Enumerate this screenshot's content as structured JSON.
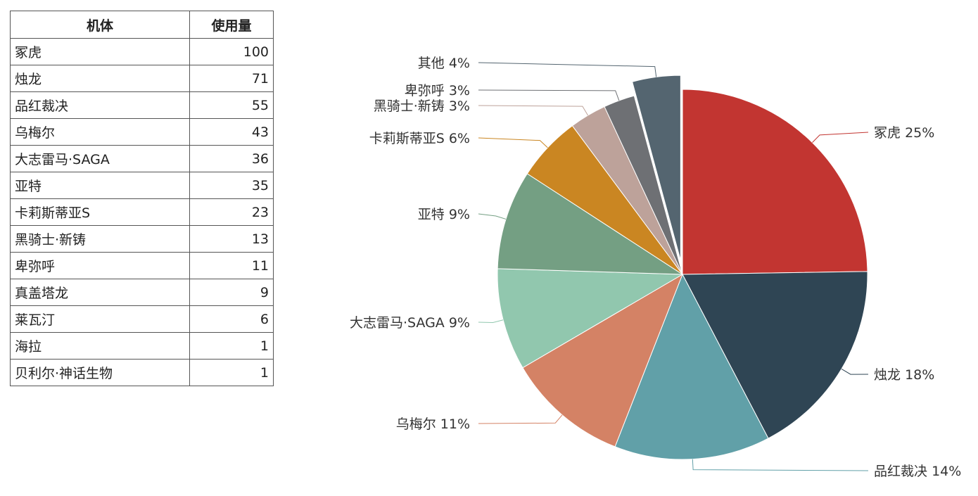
{
  "table": {
    "headers": {
      "name": "机体",
      "value": "使用量"
    },
    "rows": [
      {
        "name": "冢虎",
        "value": "100"
      },
      {
        "name": "烛龙",
        "value": "71"
      },
      {
        "name": "品红裁决",
        "value": "55"
      },
      {
        "name": "乌梅尔",
        "value": "43"
      },
      {
        "name": "大志雷马·SAGA",
        "value": "36"
      },
      {
        "name": "亚特",
        "value": "35"
      },
      {
        "name": "卡莉斯蒂亚S",
        "value": "23"
      },
      {
        "name": "黑骑士·新铸",
        "value": "13"
      },
      {
        "name": "卑弥呼",
        "value": "11"
      },
      {
        "name": "真盖塔龙",
        "value": "9"
      },
      {
        "name": "莱瓦汀",
        "value": "6"
      },
      {
        "name": "海拉",
        "value": "1"
      },
      {
        "name": "贝利尔·神话生物",
        "value": "1"
      }
    ]
  },
  "chart_data": {
    "type": "pie",
    "slices": [
      {
        "label": "冢虎",
        "value": 100,
        "percent_label": "25%",
        "color": "#c23531"
      },
      {
        "label": "烛龙",
        "value": 71,
        "percent_label": "18%",
        "color": "#2f4554"
      },
      {
        "label": "品红裁决",
        "value": 55,
        "percent_label": "14%",
        "color": "#61a0a8"
      },
      {
        "label": "乌梅尔",
        "value": 43,
        "percent_label": "11%",
        "color": "#d48265"
      },
      {
        "label": "大志雷马·SAGA",
        "value": 36,
        "percent_label": "9%",
        "color": "#91c7ae"
      },
      {
        "label": "亚特",
        "value": 35,
        "percent_label": "9%",
        "color": "#749f83"
      },
      {
        "label": "卡莉斯蒂亚S",
        "value": 23,
        "percent_label": "6%",
        "color": "#ca8622"
      },
      {
        "label": "黑骑士·新铸",
        "value": 13,
        "percent_label": "3%",
        "color": "#bda29a"
      },
      {
        "label": "卑弥呼",
        "value": 11,
        "percent_label": "3%",
        "color": "#6e7074"
      },
      {
        "label": "其他",
        "value": 17,
        "percent_label": "4%",
        "color": "#546570",
        "exploded": true
      }
    ]
  }
}
